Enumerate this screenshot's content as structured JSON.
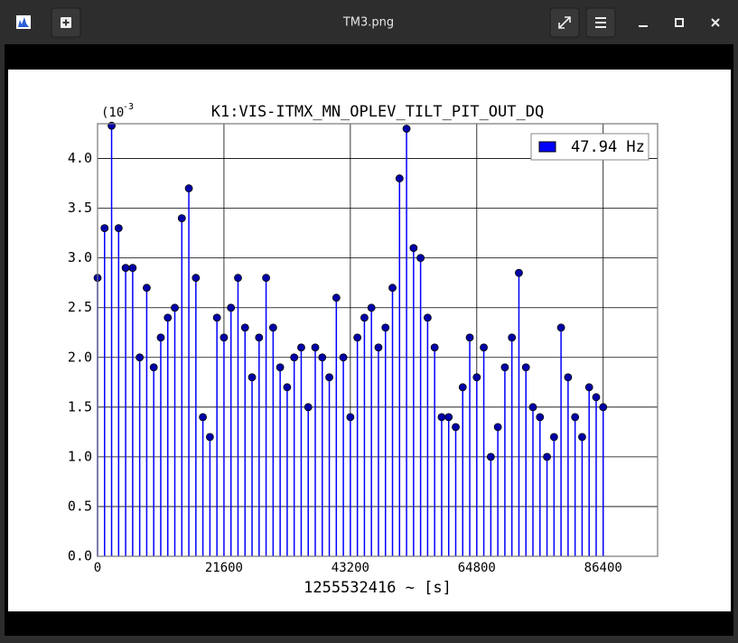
{
  "window": {
    "title": "TM3.png"
  },
  "chart_data": {
    "type": "stem",
    "title": "K1:VIS-ITMX_MN_OPLEV_TILT_PIT_OUT_DQ",
    "x_label": "1255532416 ~ [s]",
    "y_scale_base": "(10",
    "y_scale_exponent": "-3",
    "series": [
      {
        "name": "47.94 Hz",
        "color": "#0000ff",
        "marker_color": "#0000a8",
        "x": [
          0,
          1200,
          2400,
          3600,
          4800,
          6000,
          7200,
          8400,
          9600,
          10800,
          12000,
          13200,
          14400,
          15600,
          16800,
          18000,
          19200,
          20400,
          21600,
          22800,
          24000,
          25200,
          26400,
          27600,
          28800,
          30000,
          31200,
          32400,
          33600,
          34800,
          36000,
          37200,
          38400,
          39600,
          40800,
          42000,
          43200,
          44400,
          45600,
          46800,
          48000,
          49200,
          50400,
          51600,
          52800,
          54000,
          55200,
          56400,
          57600,
          58800,
          60000,
          61200,
          62400,
          63600,
          64800,
          66000,
          67200,
          68400,
          69600,
          70800,
          72000,
          73200,
          74400,
          75600,
          76800,
          78000,
          79200,
          80400,
          81600,
          82800,
          84000,
          85200,
          86400
        ],
        "values": [
          2.8,
          3.3,
          4.33,
          3.3,
          2.9,
          2.9,
          2.0,
          2.7,
          1.9,
          2.2,
          2.4,
          2.5,
          3.4,
          3.7,
          2.8,
          1.4,
          1.2,
          2.4,
          2.2,
          2.5,
          2.8,
          2.3,
          1.8,
          2.2,
          2.8,
          2.3,
          1.9,
          1.7,
          2.0,
          2.1,
          1.5,
          2.1,
          2.0,
          1.8,
          2.6,
          2.0,
          1.4,
          2.2,
          2.4,
          2.5,
          2.1,
          2.3,
          2.7,
          3.8,
          4.3,
          3.1,
          3.0,
          2.4,
          2.1,
          1.4,
          1.4,
          1.3,
          1.7,
          2.2,
          1.8,
          2.1,
          1.0,
          1.3,
          1.9,
          2.2,
          2.85,
          1.9,
          1.5,
          1.4,
          1.0,
          1.2,
          2.3,
          1.8,
          1.4,
          1.2,
          1.7,
          1.6,
          1.5
        ]
      }
    ],
    "xlim": [
      0,
      95700
    ],
    "xticks": [
      0,
      21600,
      43200,
      64800,
      86400
    ],
    "ylim": [
      0,
      4.35
    ],
    "yticks": [
      {
        "value": 0,
        "label": "0.0"
      },
      0.5,
      {
        "value": 1,
        "label": "1.0"
      },
      1.5,
      {
        "value": 2,
        "label": "2.0"
      },
      2.5,
      {
        "value": 3,
        "label": "3.0"
      },
      3.5,
      {
        "value": 4,
        "label": "4.0"
      }
    ],
    "grid": true,
    "legend_position": "upper right"
  }
}
